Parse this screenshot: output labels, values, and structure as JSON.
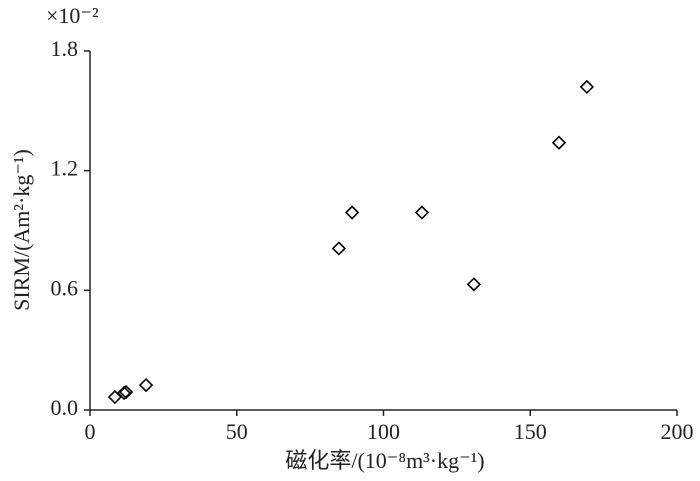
{
  "chart_data": {
    "type": "scatter",
    "axis_multiplier": "×10⁻²",
    "x_label": "磁化率/(10⁻⁸m³·kg⁻¹)",
    "y_label": "SIRM/(Am²·kg⁻¹)",
    "x": [
      8.5,
      11.6,
      12.3,
      19.1,
      84.8,
      89.3,
      113.1,
      130.8,
      159.8,
      169.3
    ],
    "values": [
      0.065,
      0.085,
      0.09,
      0.125,
      0.81,
      0.99,
      0.99,
      0.63,
      1.34,
      1.62
    ],
    "color": "#000000",
    "xlim": [
      0,
      200
    ],
    "xticks": [
      0,
      50,
      100,
      150,
      200
    ],
    "ylim": [
      0,
      1.8
    ],
    "yticks": [
      {
        "value": 0,
        "label": "0.0"
      },
      0.6,
      1.2,
      1.8
    ]
  }
}
